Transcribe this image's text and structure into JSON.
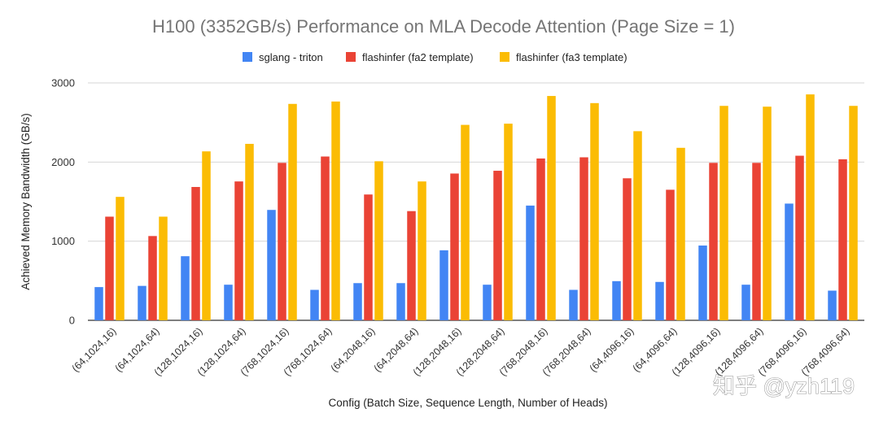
{
  "chart_data": {
    "type": "bar",
    "title": "H100 (3352GB/s) Performance on MLA Decode Attention (Page Size = 1)",
    "xlabel": "Config (Batch Size, Sequence Length, Number of Heads)",
    "ylabel": "Achieved Memory Bandwidth (GB/s)",
    "ylim": [
      0,
      3000
    ],
    "yticks": [
      "0",
      "1000",
      "2000",
      "3000"
    ],
    "grid": true,
    "legend_position": "top-center",
    "categories": [
      "(64,1024,16)",
      "(64,1024,64)",
      "(128,1024,16)",
      "(128,1024,64)",
      "(768,1024,16)",
      "(768,1024,64)",
      "(64,2048,16)",
      "(64,2048,64)",
      "(128,2048,16)",
      "(128,2048,64)",
      "(768,2048,16)",
      "(768,2048,64)",
      "(64,4096,16)",
      "(64,4096,64)",
      "(128,4096,16)",
      "(128,4096,64)",
      "(768,4096,16)",
      "(768,4096,64)"
    ],
    "series": [
      {
        "name": "sglang - triton",
        "color": "#4285f4",
        "values": [
          420,
          435,
          810,
          450,
          1395,
          385,
          470,
          470,
          885,
          450,
          1450,
          385,
          495,
          485,
          945,
          450,
          1475,
          375
        ]
      },
      {
        "name": "flashinfer (fa2 template)",
        "color": "#ea4335",
        "values": [
          1310,
          1065,
          1685,
          1755,
          1990,
          2070,
          1590,
          1380,
          1855,
          1890,
          2045,
          2060,
          1795,
          1650,
          1990,
          1990,
          2080,
          2035
        ]
      },
      {
        "name": "flashinfer (fa3 template)",
        "color": "#fbbc04",
        "values": [
          1560,
          1310,
          2135,
          2230,
          2735,
          2765,
          2010,
          1755,
          2470,
          2485,
          2835,
          2745,
          2390,
          2180,
          2710,
          2700,
          2855,
          2710
        ]
      }
    ]
  },
  "watermark": "知乎 @yzh119"
}
